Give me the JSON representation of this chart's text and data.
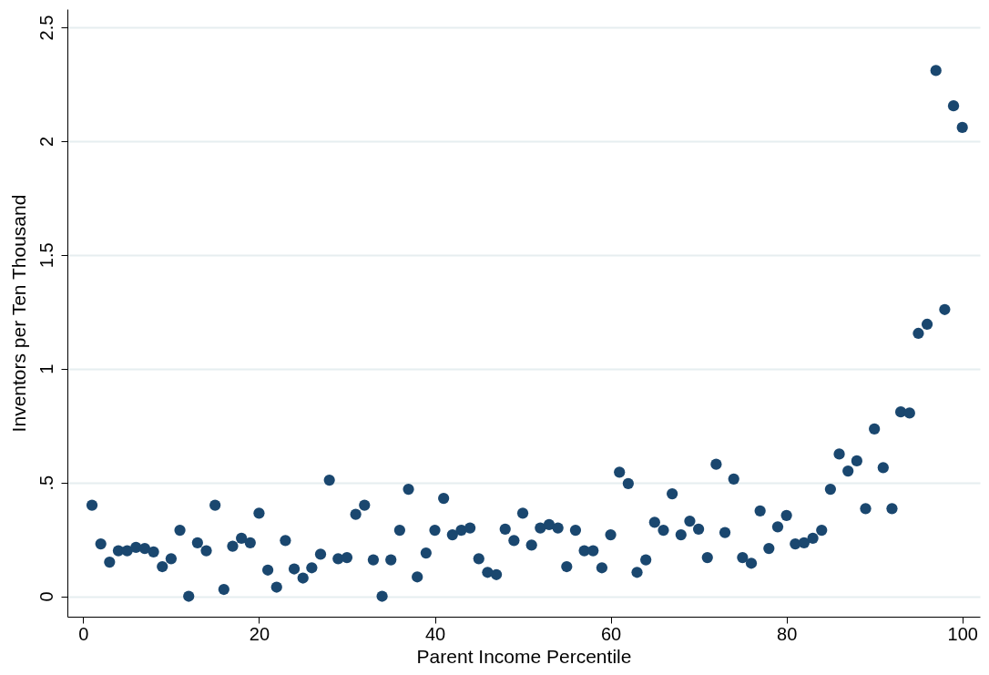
{
  "chart_data": {
    "type": "scatter",
    "xlabel": "Parent Income Percentile",
    "ylabel": "Inventors per Ten Thousand",
    "x": [
      1,
      2,
      3,
      4,
      5,
      6,
      7,
      8,
      9,
      10,
      11,
      12,
      13,
      14,
      15,
      16,
      17,
      18,
      19,
      20,
      21,
      22,
      23,
      24,
      25,
      26,
      27,
      28,
      29,
      30,
      31,
      32,
      33,
      34,
      35,
      36,
      37,
      38,
      39,
      40,
      41,
      42,
      43,
      44,
      45,
      46,
      47,
      48,
      49,
      50,
      51,
      52,
      53,
      54,
      55,
      56,
      57,
      58,
      59,
      60,
      61,
      62,
      63,
      64,
      65,
      66,
      67,
      68,
      69,
      70,
      71,
      72,
      73,
      74,
      75,
      76,
      77,
      78,
      79,
      80,
      81,
      82,
      83,
      84,
      85,
      86,
      87,
      88,
      89,
      90,
      91,
      92,
      93,
      94,
      95,
      96,
      97,
      98,
      99,
      100
    ],
    "series": [
      {
        "color": "#1a476f",
        "values": [
          0.4,
          0.23,
          0.15,
          0.2,
          0.2,
          0.215,
          0.21,
          0.195,
          0.13,
          0.165,
          0.29,
          0.0,
          0.235,
          0.2,
          0.4,
          0.03,
          0.22,
          0.255,
          0.235,
          0.365,
          0.115,
          0.04,
          0.245,
          0.12,
          0.08,
          0.125,
          0.185,
          0.51,
          0.165,
          0.17,
          0.36,
          0.4,
          0.16,
          0.0,
          0.16,
          0.29,
          0.47,
          0.085,
          0.19,
          0.29,
          0.43,
          0.27,
          0.29,
          0.3,
          0.165,
          0.105,
          0.095,
          0.295,
          0.245,
          0.365,
          0.225,
          0.3,
          0.315,
          0.3,
          0.13,
          0.29,
          0.2,
          0.2,
          0.125,
          0.27,
          0.545,
          0.495,
          0.105,
          0.16,
          0.325,
          0.29,
          0.45,
          0.27,
          0.33,
          0.295,
          0.17,
          0.58,
          0.28,
          0.515,
          0.17,
          0.145,
          0.375,
          0.21,
          0.305,
          0.355,
          0.23,
          0.235,
          0.255,
          0.29,
          0.47,
          0.625,
          0.55,
          0.595,
          0.385,
          0.735,
          0.565,
          0.385,
          0.81,
          0.805,
          1.155,
          1.195,
          2.31,
          1.26,
          2.155,
          2.06
        ]
      }
    ],
    "xlim": [
      -1.8,
      102
    ],
    "xticks": [
      0,
      20,
      40,
      60,
      80,
      100
    ],
    "ylim": [
      -0.09,
      2.58
    ],
    "yticks": [
      {
        "value": 0,
        "label": "0"
      },
      {
        "value": 0.5,
        "label": ".5"
      },
      {
        "value": 1,
        "label": "1"
      },
      {
        "value": 1.5,
        "label": "1.5"
      },
      {
        "value": 2,
        "label": "2"
      },
      {
        "value": 2.5,
        "label": "2.5"
      }
    ],
    "grid": "y",
    "marker": "circle"
  }
}
